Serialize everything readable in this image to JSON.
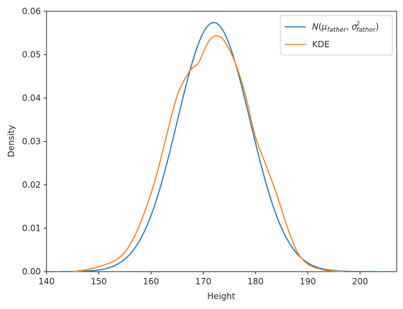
{
  "chart_data": {
    "type": "line",
    "title": "",
    "xlabel": "Height",
    "ylabel": "Density",
    "xlim": [
      140,
      207
    ],
    "ylim": [
      0,
      0.06
    ],
    "x_ticks": [
      140,
      150,
      160,
      170,
      180,
      190,
      200
    ],
    "x_tick_labels": [
      "140",
      "150",
      "160",
      "170",
      "180",
      "190",
      "200"
    ],
    "y_ticks": [
      0,
      0.01,
      0.02,
      0.03,
      0.04,
      0.05,
      0.06
    ],
    "y_tick_labels": [
      "0.00",
      "0.01",
      "0.02",
      "0.03",
      "0.04",
      "0.05",
      "0.06"
    ],
    "grid": false,
    "legend_position": "top-right",
    "series": [
      {
        "name": "N(μ_father, σ²_father)",
        "color": "#1f77b4",
        "normal": {
          "mean": 172.0,
          "sd": 6.95
        },
        "x_range": [
          143,
          204
        ]
      },
      {
        "name": "KDE",
        "color": "#ff7f0e",
        "x": [
          145,
          147,
          149,
          151,
          153,
          155,
          157,
          159,
          161,
          163,
          165,
          167,
          168,
          169,
          170,
          171,
          172,
          173,
          174,
          176,
          178,
          180,
          182,
          184,
          186,
          188,
          190,
          192,
          194,
          197
        ],
        "y": [
          5e-05,
          0.0003,
          0.0008,
          0.0015,
          0.0025,
          0.0045,
          0.0085,
          0.0145,
          0.022,
          0.0315,
          0.0405,
          0.0455,
          0.047,
          0.048,
          0.0505,
          0.053,
          0.0542,
          0.0542,
          0.0532,
          0.0485,
          0.041,
          0.031,
          0.0245,
          0.018,
          0.0105,
          0.0045,
          0.0017,
          0.0007,
          0.0002,
          0.0
        ]
      }
    ]
  }
}
